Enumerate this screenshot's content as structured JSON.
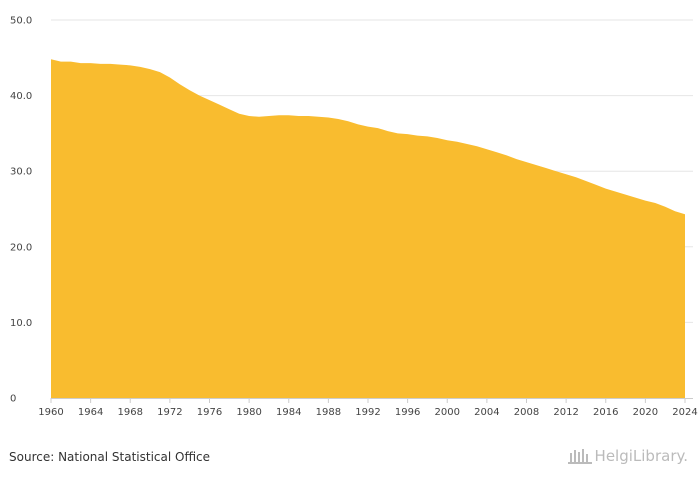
{
  "chart_data": {
    "type": "area",
    "x": [
      1960,
      1961,
      1962,
      1963,
      1964,
      1965,
      1966,
      1967,
      1968,
      1969,
      1970,
      1971,
      1972,
      1973,
      1974,
      1975,
      1976,
      1977,
      1978,
      1979,
      1980,
      1981,
      1982,
      1983,
      1984,
      1985,
      1986,
      1987,
      1988,
      1989,
      1990,
      1991,
      1992,
      1993,
      1994,
      1995,
      1996,
      1997,
      1998,
      1999,
      2000,
      2001,
      2002,
      2003,
      2004,
      2005,
      2006,
      2007,
      2008,
      2009,
      2010,
      2011,
      2012,
      2013,
      2014,
      2015,
      2016,
      2017,
      2018,
      2019,
      2020,
      2021,
      2022,
      2023,
      2024
    ],
    "series": [
      {
        "values": [
          44.8,
          44.5,
          44.5,
          44.3,
          44.3,
          44.2,
          44.2,
          44.1,
          44.0,
          43.8,
          43.5,
          43.1,
          42.4,
          41.5,
          40.7,
          40.0,
          39.4,
          38.8,
          38.2,
          37.6,
          37.3,
          37.2,
          37.3,
          37.4,
          37.4,
          37.3,
          37.3,
          37.2,
          37.1,
          36.9,
          36.6,
          36.2,
          35.9,
          35.7,
          35.3,
          35.0,
          34.9,
          34.7,
          34.6,
          34.4,
          34.1,
          33.9,
          33.6,
          33.3,
          32.9,
          32.5,
          32.1,
          31.6,
          31.2,
          30.8,
          30.4,
          30.0,
          29.6,
          29.2,
          28.7,
          28.2,
          27.7,
          27.3,
          26.9,
          26.5,
          26.1,
          25.8,
          25.3,
          24.7,
          24.3
        ],
        "color": "#f9bc2f"
      }
    ],
    "x_ticks": [
      "1960",
      "1964",
      "1968",
      "1972",
      "1976",
      "1980",
      "1984",
      "1988",
      "1992",
      "1996",
      "2000",
      "2004",
      "2008",
      "2012",
      "2016",
      "2020",
      "2024"
    ],
    "y_ticks": [
      "0",
      "10.0",
      "20.0",
      "30.0",
      "40.0",
      "50.0"
    ],
    "ylim": [
      0,
      50
    ],
    "xlim": [
      1960,
      2024
    ],
    "grid": true,
    "title": "",
    "xlabel": "",
    "ylabel": ""
  },
  "footer": {
    "source": "Source: National Statistical Office",
    "brand": "HelgiLibrary."
  },
  "colors": {
    "area": "#f9bc2f",
    "grid": "#e6e6e6",
    "axis": "#cccccc",
    "text": "#444444",
    "brand": "#bbbbbb"
  }
}
